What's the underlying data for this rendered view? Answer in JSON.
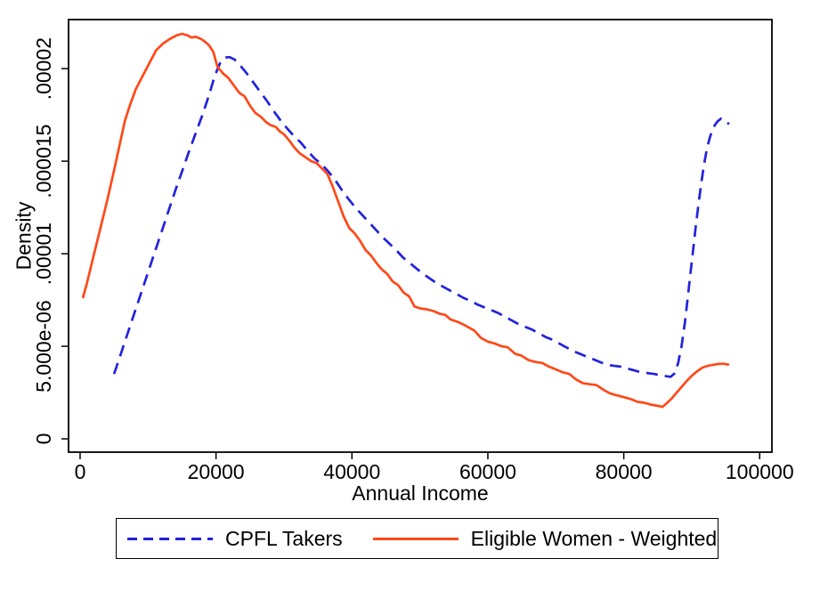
{
  "figure": {
    "background_color": "#ffffff",
    "axis_color": "#000000",
    "frame": "full box, no gridlines"
  },
  "chart_data": {
    "type": "line",
    "title": "",
    "xlabel": "Annual Income",
    "ylabel": "Density",
    "grid": false,
    "legend_position": "bottom, boxed",
    "xlim": [
      -1700,
      101800
    ],
    "ylim": [
      -7.2e-07,
      2.265e-05
    ],
    "x_ticks": [
      {
        "value": 0,
        "label": "0"
      },
      {
        "value": 20000,
        "label": "20000"
      },
      {
        "value": 40000,
        "label": "40000"
      },
      {
        "value": 60000,
        "label": "60000"
      },
      {
        "value": 80000,
        "label": "80000"
      },
      {
        "value": 100000,
        "label": "100000"
      }
    ],
    "y_ticks": [
      {
        "value": 0,
        "label": "0"
      },
      {
        "value": 5e-06,
        "label": "5.000e-06"
      },
      {
        "value": 1e-05,
        "label": ".00001"
      },
      {
        "value": 1.5e-05,
        "label": ".000015"
      },
      {
        "value": 2e-05,
        "label": ".00002"
      }
    ],
    "series": [
      {
        "name": "CPFL Takers",
        "color": "#2222dd",
        "style": "dashed",
        "points": [
          [
            5000,
            3.5e-06
          ],
          [
            6000,
            4.6e-06
          ],
          [
            7000,
            5.7e-06
          ],
          [
            8000,
            6.8e-06
          ],
          [
            9000,
            7.9e-06
          ],
          [
            10000,
            9e-06
          ],
          [
            11000,
            1.01e-05
          ],
          [
            12000,
            1.12e-05
          ],
          [
            13000,
            1.23e-05
          ],
          [
            14000,
            1.34e-05
          ],
          [
            15000,
            1.445e-05
          ],
          [
            16000,
            1.55e-05
          ],
          [
            17000,
            1.65e-05
          ],
          [
            18000,
            1.75e-05
          ],
          [
            19000,
            1.86e-05
          ],
          [
            19800,
            1.96e-05
          ],
          [
            20600,
            2.03e-05
          ],
          [
            21300,
            2.06e-05
          ],
          [
            22000,
            2.062e-05
          ],
          [
            22700,
            2.05e-05
          ],
          [
            23500,
            2.02e-05
          ],
          [
            24500,
            1.975e-05
          ],
          [
            25500,
            1.925e-05
          ],
          [
            26500,
            1.875e-05
          ],
          [
            27500,
            1.825e-05
          ],
          [
            28500,
            1.77e-05
          ],
          [
            29500,
            1.72e-05
          ],
          [
            30500,
            1.675e-05
          ],
          [
            31500,
            1.635e-05
          ],
          [
            32500,
            1.6e-05
          ],
          [
            33500,
            1.555e-05
          ],
          [
            34500,
            1.515e-05
          ],
          [
            35500,
            1.485e-05
          ],
          [
            36500,
            1.445e-05
          ],
          [
            37500,
            1.4e-05
          ],
          [
            38500,
            1.345e-05
          ],
          [
            39500,
            1.295e-05
          ],
          [
            40500,
            1.25e-05
          ],
          [
            41500,
            1.21e-05
          ],
          [
            42500,
            1.17e-05
          ],
          [
            43500,
            1.13e-05
          ],
          [
            44500,
            1.09e-05
          ],
          [
            45500,
            1.055e-05
          ],
          [
            46500,
            1.02e-05
          ],
          [
            47500,
            9.8e-06
          ],
          [
            48500,
            9.5e-06
          ],
          [
            49500,
            9.2e-06
          ],
          [
            50500,
            8.9e-06
          ],
          [
            51500,
            8.65e-06
          ],
          [
            52500,
            8.4e-06
          ],
          [
            53500,
            8.2e-06
          ],
          [
            54500,
            8e-06
          ],
          [
            55500,
            7.8e-06
          ],
          [
            56500,
            7.6e-06
          ],
          [
            57500,
            7.45e-06
          ],
          [
            58500,
            7.25e-06
          ],
          [
            59500,
            7.1e-06
          ],
          [
            60500,
            6.95e-06
          ],
          [
            61500,
            6.8e-06
          ],
          [
            62500,
            6.6e-06
          ],
          [
            63500,
            6.4e-06
          ],
          [
            64500,
            6.2e-06
          ],
          [
            65500,
            6.05e-06
          ],
          [
            66500,
            5.9e-06
          ],
          [
            67500,
            5.7e-06
          ],
          [
            68500,
            5.5e-06
          ],
          [
            69500,
            5.35e-06
          ],
          [
            70500,
            5.15e-06
          ],
          [
            71500,
            4.95e-06
          ],
          [
            72500,
            4.75e-06
          ],
          [
            73500,
            4.6e-06
          ],
          [
            74500,
            4.45e-06
          ],
          [
            75500,
            4.3e-06
          ],
          [
            76500,
            4.15e-06
          ],
          [
            77500,
            4e-06
          ],
          [
            78500,
            3.95e-06
          ],
          [
            79500,
            3.9e-06
          ],
          [
            80500,
            3.8e-06
          ],
          [
            81500,
            3.7e-06
          ],
          [
            82500,
            3.6e-06
          ],
          [
            83500,
            3.55e-06
          ],
          [
            84500,
            3.5e-06
          ],
          [
            85500,
            3.42e-06
          ],
          [
            86300,
            3.38e-06
          ],
          [
            86900,
            3.35e-06
          ],
          [
            87500,
            3.55e-06
          ],
          [
            88000,
            4.1e-06
          ],
          [
            88500,
            5e-06
          ],
          [
            89000,
            6.3e-06
          ],
          [
            89400,
            7.6e-06
          ],
          [
            89800,
            8.9e-06
          ],
          [
            90200,
            1.02e-05
          ],
          [
            90600,
            1.15e-05
          ],
          [
            91000,
            1.27e-05
          ],
          [
            91400,
            1.38e-05
          ],
          [
            91800,
            1.48e-05
          ],
          [
            92200,
            1.56e-05
          ],
          [
            92600,
            1.62e-05
          ],
          [
            93000,
            1.665e-05
          ],
          [
            93400,
            1.695e-05
          ],
          [
            93800,
            1.715e-05
          ],
          [
            94300,
            1.73e-05
          ],
          [
            94800,
            1.725e-05
          ],
          [
            95200,
            1.71e-05
          ],
          [
            95500,
            1.7e-05
          ]
        ]
      },
      {
        "name": "Eligible Women - Weighted",
        "color": "#ff4818",
        "style": "solid",
        "points": [
          [
            400,
            7.6e-06
          ],
          [
            1000,
            8.4e-06
          ],
          [
            2000,
            9.9e-06
          ],
          [
            3000,
            1.14e-05
          ],
          [
            4000,
            1.29e-05
          ],
          [
            5000,
            1.45e-05
          ],
          [
            6000,
            1.62e-05
          ],
          [
            6600,
            1.72e-05
          ],
          [
            7400,
            1.81e-05
          ],
          [
            8200,
            1.89e-05
          ],
          [
            9200,
            1.96e-05
          ],
          [
            10200,
            2.03e-05
          ],
          [
            11200,
            2.1e-05
          ],
          [
            12200,
            2.135e-05
          ],
          [
            13200,
            2.16e-05
          ],
          [
            14200,
            2.18e-05
          ],
          [
            15000,
            2.188e-05
          ],
          [
            15800,
            2.18e-05
          ],
          [
            16400,
            2.168e-05
          ],
          [
            17000,
            2.172e-05
          ],
          [
            17800,
            2.16e-05
          ],
          [
            18400,
            2.145e-05
          ],
          [
            19000,
            2.125e-05
          ],
          [
            19600,
            2.09e-05
          ],
          [
            20200,
            2.01e-05
          ],
          [
            21000,
            1.975e-05
          ],
          [
            21800,
            1.95e-05
          ],
          [
            22600,
            1.91e-05
          ],
          [
            23400,
            1.87e-05
          ],
          [
            24200,
            1.85e-05
          ],
          [
            25000,
            1.8e-05
          ],
          [
            25800,
            1.76e-05
          ],
          [
            26600,
            1.74e-05
          ],
          [
            27400,
            1.71e-05
          ],
          [
            28000,
            1.695e-05
          ],
          [
            28800,
            1.685e-05
          ],
          [
            29400,
            1.66e-05
          ],
          [
            30000,
            1.645e-05
          ],
          [
            30800,
            1.61e-05
          ],
          [
            31600,
            1.57e-05
          ],
          [
            32400,
            1.54e-05
          ],
          [
            33200,
            1.52e-05
          ],
          [
            34000,
            1.5e-05
          ],
          [
            34800,
            1.49e-05
          ],
          [
            35600,
            1.46e-05
          ],
          [
            36400,
            1.43e-05
          ],
          [
            37200,
            1.36e-05
          ],
          [
            38000,
            1.28e-05
          ],
          [
            38800,
            1.2e-05
          ],
          [
            39600,
            1.14e-05
          ],
          [
            40400,
            1.11e-05
          ],
          [
            41200,
            1.07e-05
          ],
          [
            42000,
            1.02e-05
          ],
          [
            42800,
            9.9e-06
          ],
          [
            43600,
            9.5e-06
          ],
          [
            44400,
            9.15e-06
          ],
          [
            45200,
            8.9e-06
          ],
          [
            46000,
            8.5e-06
          ],
          [
            46800,
            8.3e-06
          ],
          [
            47600,
            7.9e-06
          ],
          [
            48400,
            7.7e-06
          ],
          [
            49200,
            7.15e-06
          ],
          [
            50000,
            7.05e-06
          ],
          [
            51000,
            7e-06
          ],
          [
            52000,
            6.9e-06
          ],
          [
            53000,
            6.75e-06
          ],
          [
            53700,
            6.7e-06
          ],
          [
            54500,
            6.45e-06
          ],
          [
            55700,
            6.3e-06
          ],
          [
            56500,
            6.15e-06
          ],
          [
            57300,
            6e-06
          ],
          [
            58000,
            5.85e-06
          ],
          [
            59000,
            5.45e-06
          ],
          [
            60000,
            5.25e-06
          ],
          [
            61000,
            5.15e-06
          ],
          [
            62000,
            5e-06
          ],
          [
            62900,
            4.95e-06
          ],
          [
            64000,
            4.6e-06
          ],
          [
            64900,
            4.5e-06
          ],
          [
            66000,
            4.25e-06
          ],
          [
            67000,
            4.15e-06
          ],
          [
            68000,
            4.1e-06
          ],
          [
            69000,
            3.9e-06
          ],
          [
            70000,
            3.75e-06
          ],
          [
            71000,
            3.6e-06
          ],
          [
            72000,
            3.5e-06
          ],
          [
            73000,
            3.2e-06
          ],
          [
            74000,
            3e-06
          ],
          [
            75000,
            2.95e-06
          ],
          [
            76000,
            2.9e-06
          ],
          [
            77000,
            2.65e-06
          ],
          [
            78000,
            2.45e-06
          ],
          [
            79000,
            2.35e-06
          ],
          [
            80000,
            2.25e-06
          ],
          [
            81000,
            2.15e-06
          ],
          [
            82000,
            2e-06
          ],
          [
            83000,
            1.95e-06
          ],
          [
            84000,
            1.85e-06
          ],
          [
            85000,
            1.78e-06
          ],
          [
            85700,
            1.73e-06
          ],
          [
            86400,
            1.95e-06
          ],
          [
            87100,
            2.2e-06
          ],
          [
            87800,
            2.5e-06
          ],
          [
            88500,
            2.8e-06
          ],
          [
            89200,
            3.1e-06
          ],
          [
            90000,
            3.4e-06
          ],
          [
            90800,
            3.65e-06
          ],
          [
            91600,
            3.85e-06
          ],
          [
            92400,
            3.95e-06
          ],
          [
            93200,
            4e-06
          ],
          [
            94000,
            4.05e-06
          ],
          [
            94800,
            4.05e-06
          ],
          [
            95500,
            4e-06
          ]
        ]
      }
    ]
  }
}
